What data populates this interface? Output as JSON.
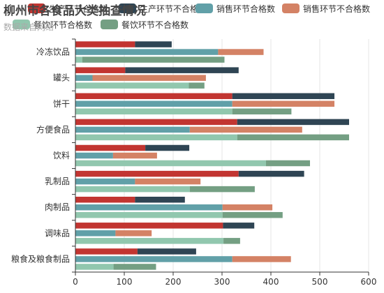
{
  "chart_data": {
    "type": "bar",
    "orientation": "horizontal",
    "title": "柳州市各食品大类抽查情况",
    "subtitle": "数据来自网络",
    "categories": [
      "粮食及粮食制品",
      "调味品",
      "肉制品",
      "乳制品",
      "饮料",
      "方便食品",
      "饼干",
      "罐头",
      "冷冻饮品"
    ],
    "series": [
      {
        "name": "生产环节合格数",
        "color": "#c23531",
        "stack": "生产",
        "values": [
          127,
          302,
          122,
          334,
          143,
          331,
          321,
          102,
          122
        ]
      },
      {
        "name": "生产环节不合格数",
        "color": "#2f4554",
        "stack": "生产",
        "values": [
          120,
          64,
          102,
          134,
          90,
          229,
          209,
          232,
          75
        ]
      },
      {
        "name": "销售环节合格数",
        "color": "#61a0a8",
        "stack": "销售",
        "values": [
          321,
          82,
          301,
          122,
          77,
          234,
          321,
          35,
          292
        ]
      },
      {
        "name": "销售环节不合格数",
        "color": "#d48265",
        "stack": "销售",
        "values": [
          120,
          74,
          102,
          134,
          90,
          230,
          209,
          232,
          93
        ]
      },
      {
        "name": "餐饮环节合格数",
        "color": "#91c7ae",
        "stack": "餐饮",
        "values": [
          78,
          303,
          301,
          234,
          390,
          331,
          321,
          232,
          14
        ]
      },
      {
        "name": "餐饮环节不合格数",
        "color": "#749f83",
        "stack": "餐饮",
        "values": [
          87,
          34,
          123,
          133,
          90,
          229,
          121,
          32,
          291
        ]
      }
    ],
    "xlim": [
      0,
      600
    ],
    "xticks": [
      0,
      100,
      200,
      300,
      400,
      500,
      600
    ],
    "grid": true,
    "legend": "top"
  }
}
